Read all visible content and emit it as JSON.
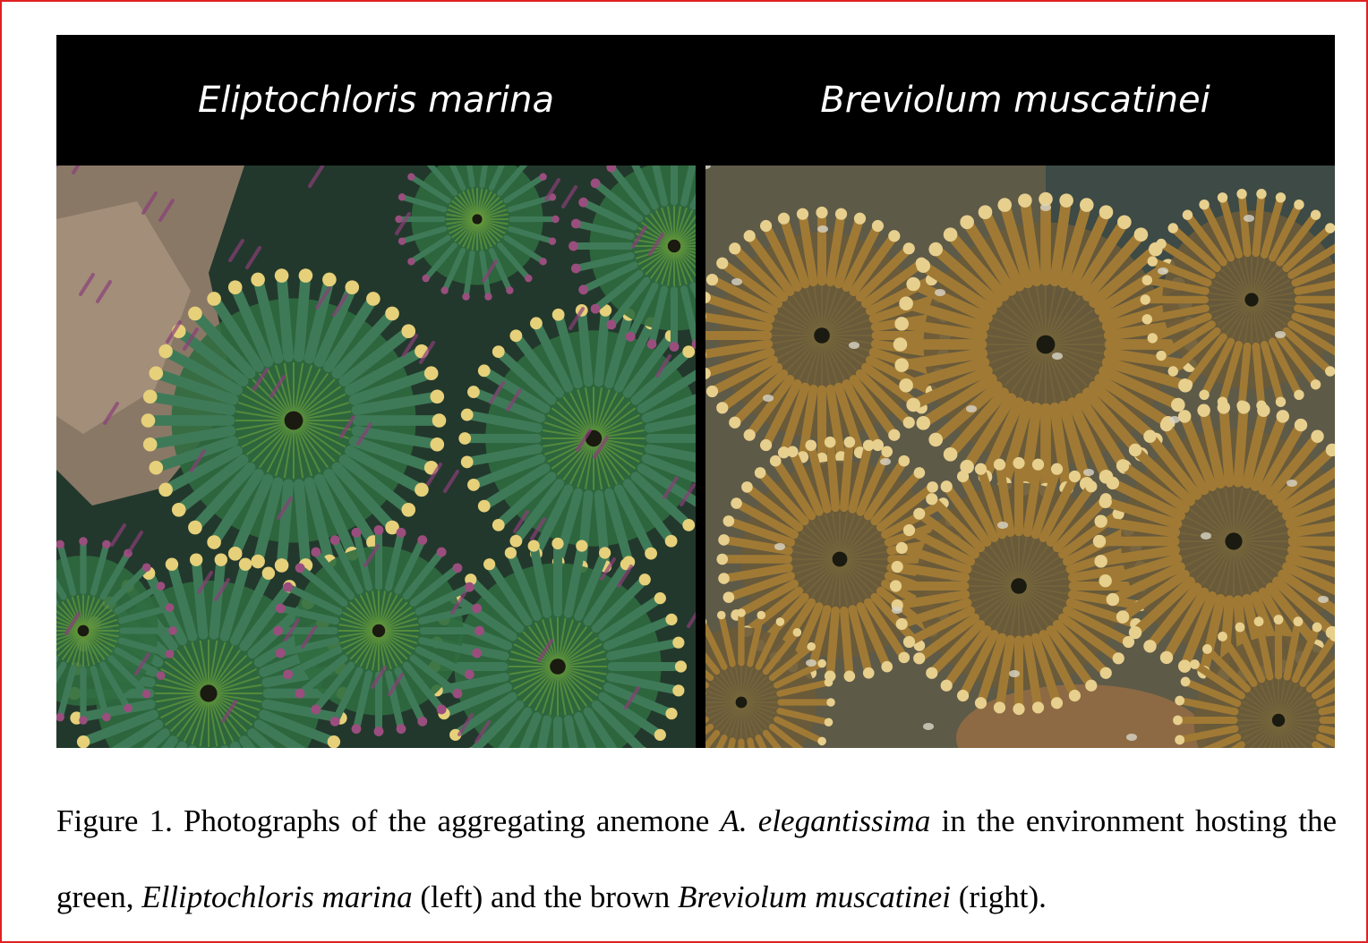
{
  "figure": {
    "panels": [
      {
        "title": "Eliptochloris marina",
        "photo_icon": "green-anemone-photo"
      },
      {
        "title": "Breviolum muscatinei",
        "photo_icon": "brown-anemone-photo"
      }
    ],
    "colors": {
      "frame_border": "#e02020",
      "title_band": "#000000",
      "green_anemone": "#2f6b3f",
      "brown_anemone": "#8a6a2a"
    }
  },
  "caption": {
    "part1": "Figure 1. Photographs of the aggregating anemone ",
    "italic1": "A. elegantissima",
    "part2": " in the environment hosting the green, ",
    "italic2": "Elliptochloris marina",
    "part3": " (left) and the brown ",
    "italic3": "Breviolum muscatinei",
    "part4": " (right)."
  }
}
